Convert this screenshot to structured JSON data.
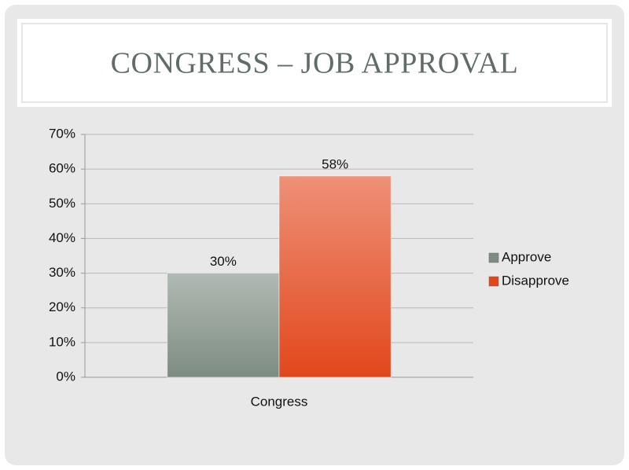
{
  "chart_data": {
    "type": "bar",
    "title": "CONGRESS – JOB APPROVAL",
    "categories": [
      "Congress"
    ],
    "series": [
      {
        "name": "Approve",
        "color": "#7d8c82",
        "values": [
          30
        ],
        "value_labels": [
          "30%"
        ]
      },
      {
        "name": "Disapprove",
        "color": "#e2471c",
        "values": [
          58
        ],
        "value_labels": [
          "58%"
        ]
      }
    ],
    "ylim": [
      0,
      70
    ],
    "yticks": [
      {
        "value": 0,
        "label": "0%"
      },
      {
        "value": 10,
        "label": "10%"
      },
      {
        "value": 20,
        "label": "20%"
      },
      {
        "value": 30,
        "label": "30%"
      },
      {
        "value": 40,
        "label": "40%"
      },
      {
        "value": 50,
        "label": "50%"
      },
      {
        "value": 60,
        "label": "60%"
      },
      {
        "value": 70,
        "label": "70%"
      }
    ],
    "grid": true,
    "legend": "right"
  }
}
